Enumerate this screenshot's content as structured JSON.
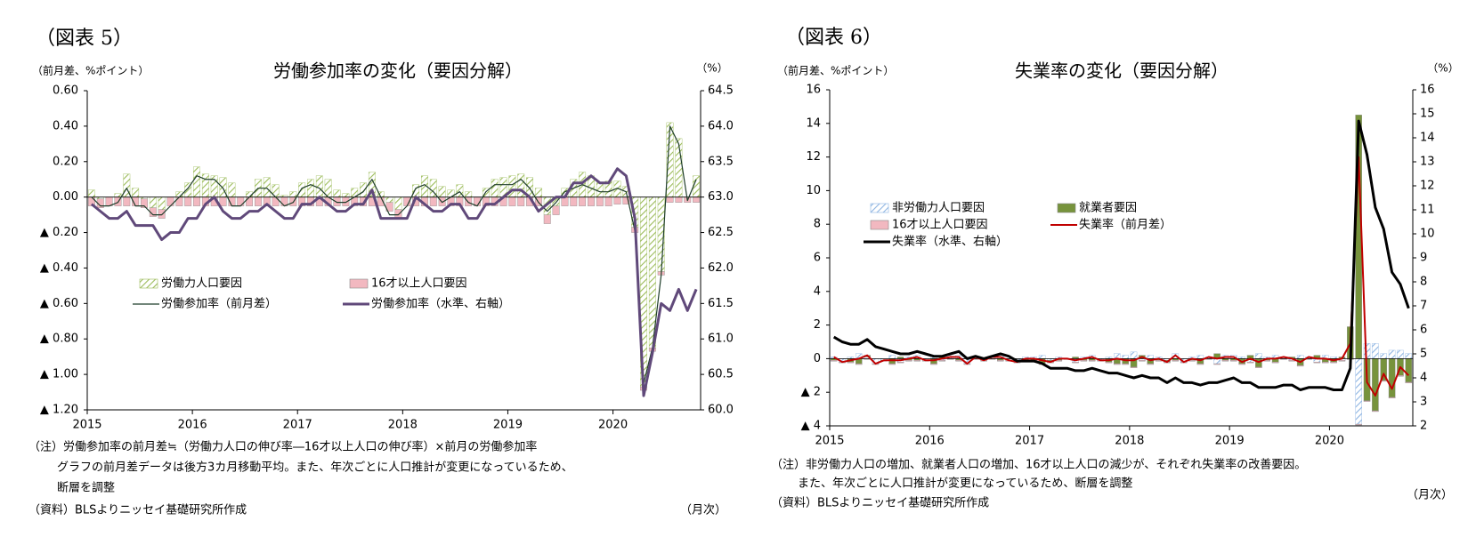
{
  "chart_data": [
    {
      "type": "bar",
      "figure_label": "（図表 5）",
      "title": "労働参加率の変化（要因分解）",
      "ylabel": "（前月差、%ポイント）",
      "y2label": "（%）",
      "notes": [
        "（注）労働参加率の前月差≒（労働力人口の伸び率―16才以上人口の伸び率）×前月の労働参加率",
        "グラフの前月差データは後方3カ月移動平均。また、年次ごとに人口推計が変更になっているため、",
        "断層を調整"
      ],
      "source": "（資料）BLSよりニッセイ基礎研究所作成",
      "xunit": "（月次）",
      "categories": [
        "2015",
        null,
        null,
        null,
        null,
        null,
        null,
        null,
        null,
        null,
        null,
        null,
        "2016",
        null,
        null,
        null,
        null,
        null,
        null,
        null,
        null,
        null,
        null,
        null,
        "2017",
        null,
        null,
        null,
        null,
        null,
        null,
        null,
        null,
        null,
        null,
        null,
        "2018",
        null,
        null,
        null,
        null,
        null,
        null,
        null,
        null,
        null,
        null,
        null,
        "2019",
        null,
        null,
        null,
        null,
        null,
        null,
        null,
        null,
        null,
        null,
        null,
        "2020",
        null,
        null,
        null,
        null,
        null,
        null,
        null,
        null,
        null
      ],
      "ylim": [
        -1.2,
        0.6
      ],
      "yticks": [
        {
          "value": 0.6,
          "label": "0.60"
        },
        {
          "value": 0.4,
          "label": "0.40"
        },
        {
          "value": 0.2,
          "label": "0.20"
        },
        {
          "value": 0,
          "label": "0.00"
        },
        {
          "value": -0.2,
          "label": "▲ 0.20"
        },
        {
          "value": -0.4,
          "label": "▲ 0.40"
        },
        {
          "value": -0.6,
          "label": "▲ 0.60"
        },
        {
          "value": -0.8,
          "label": "▲ 0.80"
        },
        {
          "value": -1.0,
          "label": "▲ 1.00"
        },
        {
          "value": -1.2,
          "label": "▲ 1.20"
        }
      ],
      "y2lim": [
        60.0,
        64.5
      ],
      "y2ticks": [
        64.5,
        {
          "value": 64.0,
          "label": "64.0"
        },
        63.5,
        {
          "value": 63.0,
          "label": "63.0"
        },
        62.5,
        {
          "value": 62.0,
          "label": "62.0"
        },
        61.5,
        {
          "value": 61.0,
          "label": "61.0"
        },
        60.5,
        {
          "value": 60.0,
          "label": "60.0"
        }
      ],
      "series": [
        {
          "name": "労働力人口要因",
          "type": "bar",
          "hatch": true,
          "color": "#9bbb59",
          "values": [
            0.04,
            -0.01,
            0.0,
            0.02,
            0.13,
            0.05,
            -0.01,
            -0.06,
            -0.07,
            0.0,
            0.03,
            0.08,
            0.17,
            0.13,
            0.12,
            0.11,
            0.08,
            0.0,
            0.03,
            0.1,
            0.11,
            0.07,
            0.01,
            0.03,
            0.08,
            0.1,
            0.12,
            0.1,
            0.04,
            0.02,
            0.05,
            0.08,
            0.14,
            0.03,
            -0.03,
            -0.07,
            0.0,
            0.07,
            0.12,
            0.1,
            0.06,
            0.04,
            0.07,
            0.03,
            0.0,
            0.05,
            0.1,
            0.11,
            0.12,
            0.13,
            0.11,
            0.05,
            -0.1,
            -0.05,
            0.05,
            0.1,
            0.14,
            0.12,
            0.08,
            0.09,
            0.09,
            0.06,
            -0.17,
            -1.07,
            -0.85,
            -0.42,
            0.42,
            0.33,
            0.0,
            0.12
          ]
        },
        {
          "name": "16才以上人口要因",
          "type": "bar",
          "color": "#f2b8c0",
          "values": [
            -0.05,
            -0.05,
            -0.05,
            -0.05,
            -0.05,
            -0.05,
            -0.05,
            -0.05,
            -0.05,
            -0.05,
            -0.05,
            -0.05,
            -0.05,
            -0.05,
            -0.05,
            -0.05,
            -0.05,
            -0.05,
            -0.05,
            -0.05,
            -0.05,
            -0.05,
            -0.05,
            -0.05,
            -0.05,
            -0.05,
            -0.05,
            -0.05,
            -0.05,
            -0.05,
            -0.05,
            -0.05,
            -0.05,
            -0.05,
            -0.05,
            -0.05,
            -0.05,
            -0.05,
            -0.05,
            -0.05,
            -0.05,
            -0.05,
            -0.05,
            -0.05,
            -0.05,
            -0.05,
            -0.05,
            -0.05,
            -0.05,
            -0.05,
            -0.05,
            -0.05,
            -0.05,
            -0.05,
            -0.05,
            -0.05,
            -0.05,
            -0.05,
            -0.05,
            -0.05,
            -0.04,
            -0.04,
            -0.03,
            -0.02,
            -0.02,
            -0.02,
            -0.03,
            -0.03,
            -0.03,
            -0.03
          ]
        },
        {
          "name": "労働参加率（前月差）",
          "type": "line",
          "color": "#1f3d2a",
          "values": [
            0.0,
            -0.05,
            -0.05,
            -0.03,
            0.05,
            -0.05,
            -0.05,
            -0.1,
            -0.1,
            -0.05,
            0.0,
            0.05,
            0.12,
            0.1,
            0.1,
            0.05,
            -0.05,
            -0.05,
            0.0,
            0.05,
            0.05,
            0.0,
            -0.05,
            -0.03,
            0.05,
            0.07,
            0.05,
            0.0,
            -0.03,
            -0.03,
            0.0,
            0.03,
            0.1,
            0.0,
            -0.1,
            -0.1,
            -0.05,
            0.05,
            0.07,
            0.03,
            -0.03,
            0.0,
            0.03,
            -0.03,
            -0.05,
            0.03,
            0.07,
            0.07,
            0.07,
            0.1,
            0.05,
            -0.03,
            -0.08,
            -0.03,
            0.03,
            0.05,
            0.07,
            0.05,
            0.03,
            0.03,
            0.05,
            0.03,
            -0.19,
            -1.05,
            -0.85,
            -0.44,
            0.4,
            0.3,
            -0.02,
            0.1
          ]
        },
        {
          "name": "労働参加率（水準、右軸）",
          "type": "line",
          "axis": "y2",
          "color": "#60497a",
          "values": [
            62.9,
            62.8,
            62.7,
            62.7,
            62.8,
            62.6,
            62.6,
            62.6,
            62.4,
            62.5,
            62.5,
            62.7,
            62.7,
            62.9,
            63.0,
            62.8,
            62.7,
            62.7,
            62.8,
            62.8,
            62.9,
            62.8,
            62.7,
            62.7,
            62.9,
            62.9,
            63.0,
            62.9,
            62.8,
            62.8,
            62.9,
            62.9,
            63.1,
            62.7,
            62.7,
            62.7,
            62.7,
            63.0,
            62.9,
            62.8,
            62.8,
            62.9,
            62.9,
            62.7,
            62.7,
            62.9,
            62.9,
            63.0,
            63.1,
            63.1,
            63.0,
            62.8,
            62.9,
            63.0,
            63.0,
            63.2,
            63.2,
            63.3,
            63.2,
            63.2,
            63.4,
            63.3,
            62.7,
            60.2,
            60.8,
            61.5,
            61.4,
            61.7,
            61.4,
            61.7
          ]
        }
      ]
    },
    {
      "type": "bar",
      "figure_label": "（図表 6）",
      "title": "失業率の変化（要因分解）",
      "ylabel": "（前月差、%ポイント）",
      "y2label": "（%）",
      "notes": [
        "（注）非労働力人口の増加、就業者人口の増加、16才以上人口の減少が、それぞれ失業率の改善要因。",
        "また、年次ごとに人口推計が変更になっているため、断層を調整"
      ],
      "source": "（資料）BLSよりニッセイ基礎研究所作成",
      "xunit": "（月次）",
      "categories": [
        "2015",
        null,
        null,
        null,
        null,
        null,
        null,
        null,
        null,
        null,
        null,
        null,
        "2016",
        null,
        null,
        null,
        null,
        null,
        null,
        null,
        null,
        null,
        null,
        null,
        "2017",
        null,
        null,
        null,
        null,
        null,
        null,
        null,
        null,
        null,
        null,
        null,
        "2018",
        null,
        null,
        null,
        null,
        null,
        null,
        null,
        null,
        null,
        null,
        null,
        "2019",
        null,
        null,
        null,
        null,
        null,
        null,
        null,
        null,
        null,
        null,
        null,
        "2020",
        null,
        null,
        null,
        null,
        null,
        null,
        null,
        null,
        null
      ],
      "ylim": [
        -4,
        16
      ],
      "yticks": [
        16,
        14,
        12,
        10,
        8,
        6,
        4,
        2,
        0,
        {
          "value": -2,
          "label": "▲ 2"
        },
        {
          "value": -4,
          "label": "▲ 4"
        }
      ],
      "y2lim": [
        2,
        16
      ],
      "y2ticks": [
        16,
        15,
        14,
        13,
        12,
        11,
        10,
        9,
        8,
        7,
        6,
        5,
        4,
        3,
        2
      ],
      "series": [
        {
          "name": "非労働力人口要因",
          "type": "bar",
          "hatch": true,
          "color": "#8db4e2",
          "values": [
            0.1,
            -0.2,
            0.1,
            0.3,
            0.1,
            -0.3,
            -0.1,
            0.2,
            -0.2,
            0.1,
            0.2,
            -0.1,
            0.2,
            -0.1,
            0.1,
            0.2,
            -0.3,
            0.1,
            -0.1,
            0.1,
            0.2,
            -0.1,
            -0.2,
            0.1,
            0.1,
            0.2,
            -0.1,
            0.1,
            0.0,
            -0.2,
            0.1,
            0.2,
            -0.1,
            0.1,
            0.3,
            0.2,
            0.4,
            -0.1,
            0.2,
            0.1,
            -0.1,
            0.3,
            -0.2,
            0.1,
            0.2,
            0.1,
            -0.3,
            0.2,
            0.2,
            0.1,
            -0.2,
            0.3,
            0.1,
            0.2,
            0.1,
            -0.1,
            0.2,
            0.1,
            -0.2,
            0.2,
            0.1,
            -0.1,
            0.0,
            -3.9,
            0.9,
            0.9,
            0.3,
            0.5,
            0.5,
            0.3
          ]
        },
        {
          "name": "就業者要因",
          "type": "bar",
          "color": "#77933c",
          "values": [
            -0.1,
            0.0,
            -0.2,
            -0.3,
            0.1,
            0.0,
            0.0,
            -0.3,
            0.1,
            -0.1,
            -0.1,
            0.0,
            -0.3,
            0.1,
            0.0,
            -0.1,
            0.0,
            0.0,
            0.0,
            0.0,
            -0.1,
            0.0,
            0.0,
            -0.1,
            -0.1,
            -0.3,
            -0.1,
            -0.1,
            0.0,
            0.1,
            -0.1,
            -0.1,
            0.0,
            -0.2,
            -0.3,
            -0.3,
            -0.5,
            0.2,
            -0.3,
            -0.1,
            -0.1,
            -0.1,
            0.0,
            -0.1,
            -0.3,
            0.0,
            0.3,
            -0.1,
            -0.1,
            -0.3,
            0.2,
            -0.5,
            -0.1,
            -0.2,
            0.0,
            0.1,
            -0.4,
            0.0,
            0.2,
            -0.2,
            -0.2,
            0.1,
            1.9,
            14.5,
            -2.5,
            -3.1,
            -1.3,
            -2.3,
            -1.0,
            -1.4
          ]
        },
        {
          "name": "16才以上人口要因",
          "type": "bar",
          "color": "#f2b8c0",
          "values": [
            -0.05,
            -0.05,
            -0.05,
            -0.05,
            -0.05,
            -0.05,
            -0.05,
            -0.05,
            -0.05,
            -0.05,
            -0.05,
            -0.05,
            -0.05,
            -0.05,
            -0.05,
            -0.05,
            -0.05,
            -0.05,
            -0.05,
            -0.05,
            -0.05,
            -0.05,
            -0.05,
            -0.05,
            -0.05,
            -0.05,
            -0.05,
            -0.05,
            -0.05,
            -0.05,
            -0.05,
            -0.05,
            -0.05,
            -0.05,
            -0.05,
            -0.05,
            -0.05,
            -0.05,
            -0.05,
            -0.05,
            -0.05,
            -0.05,
            -0.05,
            -0.05,
            -0.05,
            -0.05,
            -0.05,
            -0.05,
            -0.05,
            -0.05,
            -0.05,
            -0.05,
            -0.05,
            -0.05,
            -0.05,
            -0.05,
            -0.05,
            -0.05,
            -0.05,
            -0.05,
            -0.05,
            -0.05,
            -0.05,
            -0.05,
            -0.05,
            -0.05,
            -0.05,
            -0.05,
            -0.05,
            -0.05
          ]
        },
        {
          "name": "失業率（前月差）",
          "type": "line",
          "color": "#c00000",
          "values": [
            0.1,
            -0.2,
            -0.1,
            0.0,
            0.2,
            -0.3,
            -0.1,
            -0.1,
            -0.1,
            0.0,
            0.1,
            -0.1,
            -0.1,
            0.0,
            0.1,
            0.1,
            -0.3,
            0.1,
            -0.1,
            0.1,
            0.1,
            -0.1,
            -0.2,
            0.0,
            0.0,
            -0.1,
            -0.2,
            0.0,
            0.0,
            -0.1,
            0.0,
            0.1,
            -0.1,
            -0.1,
            0.0,
            -0.1,
            -0.1,
            0.1,
            -0.1,
            0.0,
            -0.2,
            0.2,
            -0.2,
            0.0,
            -0.1,
            0.1,
            0.0,
            0.1,
            0.1,
            -0.2,
            0.0,
            -0.2,
            0.0,
            0.0,
            0.1,
            0.0,
            -0.2,
            0.1,
            0.0,
            0.0,
            -0.1,
            0.0,
            0.9,
            12.0,
            -1.4,
            -2.2,
            -0.9,
            -1.8,
            -0.5,
            -1.0
          ]
        },
        {
          "name": "失業率（水準、右軸）",
          "type": "line",
          "axis": "y2",
          "color": "#000000",
          "values": [
            5.7,
            5.5,
            5.4,
            5.4,
            5.6,
            5.3,
            5.2,
            5.1,
            5.0,
            5.0,
            5.1,
            5.0,
            4.9,
            4.9,
            5.0,
            5.1,
            4.8,
            4.9,
            4.8,
            4.9,
            5.0,
            4.9,
            4.7,
            4.7,
            4.7,
            4.6,
            4.4,
            4.4,
            4.4,
            4.3,
            4.3,
            4.4,
            4.3,
            4.2,
            4.2,
            4.1,
            4.0,
            4.1,
            4.0,
            4.0,
            3.8,
            4.0,
            3.8,
            3.8,
            3.7,
            3.8,
            3.8,
            3.9,
            4.0,
            3.8,
            3.8,
            3.6,
            3.6,
            3.6,
            3.7,
            3.7,
            3.5,
            3.6,
            3.6,
            3.6,
            3.5,
            3.5,
            4.4,
            14.7,
            13.3,
            11.1,
            10.2,
            8.4,
            7.9,
            6.9
          ]
        }
      ]
    }
  ]
}
